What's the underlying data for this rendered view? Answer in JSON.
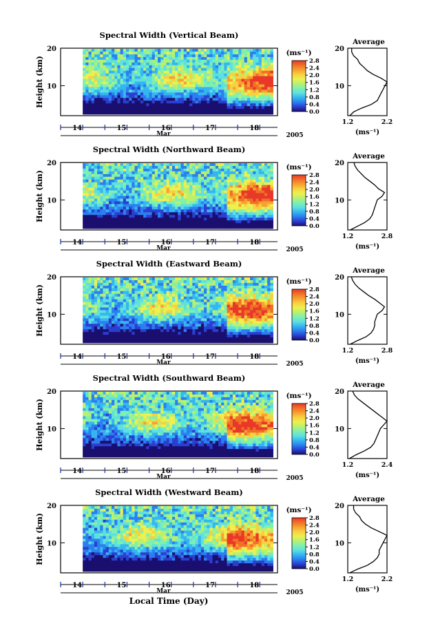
{
  "figure": {
    "xlabel": "Local Time (Day)",
    "month_label": "Mar",
    "year_label": "2005",
    "cbar_unit": "(ms⁻¹)",
    "avg_title": "Average",
    "avg_unit": "(ms⁻¹)"
  },
  "colormap": [
    "#1a0f6e",
    "#2a3fd0",
    "#2b7ff0",
    "#35b6f0",
    "#5fe0e0",
    "#7ff0b0",
    "#b8f070",
    "#ecf050",
    "#f8d040",
    "#f8a030",
    "#f07028",
    "#e83828"
  ],
  "chart_data": [
    {
      "type": "heatmap",
      "title": "Spectral Width (Vertical Beam)",
      "ylabel": "Height (km)",
      "yticks": [
        "10",
        "20"
      ],
      "ylim": [
        2,
        20
      ],
      "xticks": [
        "14",
        "15",
        "16",
        "17",
        "18"
      ],
      "xlim": [
        13.5,
        18.4
      ],
      "data_xlim": [
        14.0,
        18.3
      ],
      "colorbar": {
        "ticks": [
          "0.0",
          "0.4",
          "0.8",
          "1.2",
          "1.6",
          "2.0",
          "2.4",
          "2.8"
        ],
        "range": [
          0.0,
          2.8
        ]
      },
      "average": {
        "xticks": [
          "1.2",
          "2.2"
        ],
        "xlim": [
          1.2,
          2.2
        ],
        "heights": [
          2,
          3,
          4,
          5,
          6,
          7,
          8,
          9,
          10,
          11,
          12,
          13,
          14,
          15,
          16,
          17,
          18,
          19,
          20
        ],
        "values": [
          1.25,
          1.35,
          1.55,
          1.8,
          1.95,
          2.0,
          2.05,
          2.1,
          2.15,
          2.2,
          2.05,
          1.85,
          1.7,
          1.6,
          1.5,
          1.45,
          1.35,
          1.3,
          1.3
        ]
      }
    },
    {
      "type": "heatmap",
      "title": "Spectral Width (Northward Beam)",
      "ylabel": "Height (km)",
      "yticks": [
        "10",
        "20"
      ],
      "ylim": [
        2,
        20
      ],
      "xticks": [
        "14",
        "15",
        "16",
        "17",
        "18"
      ],
      "xlim": [
        13.5,
        18.4
      ],
      "data_xlim": [
        14.0,
        18.3
      ],
      "colorbar": {
        "ticks": [
          "0.0",
          "0.4",
          "0.8",
          "1.2",
          "1.6",
          "2.0",
          "2.4",
          "2.8"
        ],
        "range": [
          0.0,
          2.8
        ]
      },
      "average": {
        "xticks": [
          "1.2",
          "2.8"
        ],
        "xlim": [
          1.2,
          2.8
        ],
        "heights": [
          2,
          3,
          4,
          5,
          6,
          7,
          8,
          9,
          10,
          11,
          12,
          13,
          14,
          15,
          16,
          17,
          18,
          19,
          20
        ],
        "values": [
          1.3,
          1.6,
          1.9,
          2.1,
          2.2,
          2.25,
          2.3,
          2.35,
          2.4,
          2.6,
          2.7,
          2.45,
          2.3,
          2.1,
          1.9,
          1.75,
          1.6,
          1.5,
          1.45
        ]
      }
    },
    {
      "type": "heatmap",
      "title": "Spectral Width (Eastward Beam)",
      "ylabel": "Height (km)",
      "yticks": [
        "10",
        "20"
      ],
      "ylim": [
        2,
        20
      ],
      "xticks": [
        "14",
        "15",
        "16",
        "17",
        "18"
      ],
      "xlim": [
        13.5,
        18.4
      ],
      "data_xlim": [
        14.0,
        18.3
      ],
      "colorbar": {
        "ticks": [
          "0.0",
          "0.4",
          "0.8",
          "1.2",
          "1.6",
          "2.0",
          "2.4",
          "2.8"
        ],
        "range": [
          0.0,
          2.8
        ]
      },
      "average": {
        "xticks": [
          "1.2",
          "2.8"
        ],
        "xlim": [
          1.2,
          2.8
        ],
        "heights": [
          2,
          3,
          4,
          5,
          6,
          7,
          8,
          9,
          10,
          11,
          12,
          13,
          14,
          15,
          16,
          17,
          18,
          19,
          20
        ],
        "values": [
          1.3,
          1.6,
          1.95,
          2.15,
          2.25,
          2.3,
          2.3,
          2.35,
          2.4,
          2.6,
          2.7,
          2.5,
          2.3,
          2.05,
          1.85,
          1.65,
          1.5,
          1.4,
          1.35
        ]
      }
    },
    {
      "type": "heatmap",
      "title": "Spectral Width (Southward Beam)",
      "ylabel": "Height (km)",
      "yticks": [
        "10",
        "20"
      ],
      "ylim": [
        2,
        20
      ],
      "xticks": [
        "14",
        "15",
        "16",
        "17",
        "18"
      ],
      "xlim": [
        13.5,
        18.4
      ],
      "data_xlim": [
        14.0,
        18.3
      ],
      "colorbar": {
        "ticks": [
          "0.0",
          "0.4",
          "0.8",
          "1.2",
          "1.6",
          "2.0",
          "2.4",
          "2.8"
        ],
        "range": [
          0.0,
          2.8
        ]
      },
      "average": {
        "xticks": [
          "1.2",
          "2.4"
        ],
        "xlim": [
          1.2,
          2.4
        ],
        "heights": [
          2,
          3,
          4,
          5,
          6,
          7,
          8,
          9,
          10,
          11,
          12,
          13,
          14,
          15,
          16,
          17,
          18,
          19,
          20
        ],
        "values": [
          1.25,
          1.45,
          1.7,
          1.9,
          2.0,
          2.05,
          2.1,
          2.15,
          2.2,
          2.3,
          2.4,
          2.25,
          2.1,
          1.95,
          1.8,
          1.65,
          1.5,
          1.4,
          1.35
        ]
      }
    },
    {
      "type": "heatmap",
      "title": "Spectral Width (Westward Beam)",
      "ylabel": "Height (km)",
      "yticks": [
        "10",
        "20"
      ],
      "ylim": [
        2,
        20
      ],
      "xticks": [
        "14",
        "15",
        "16",
        "17",
        "18"
      ],
      "xlim": [
        13.5,
        18.4
      ],
      "data_xlim": [
        14.0,
        18.3
      ],
      "colorbar": {
        "ticks": [
          "0.0",
          "0.4",
          "0.8",
          "1.2",
          "1.6",
          "2.0",
          "2.4",
          "2.8"
        ],
        "range": [
          0.0,
          2.8
        ]
      },
      "average": {
        "xticks": [
          "1.2",
          "2.2"
        ],
        "xlim": [
          1.2,
          2.2
        ],
        "heights": [
          2,
          3,
          4,
          5,
          6,
          7,
          8,
          9,
          10,
          11,
          12,
          13,
          14,
          15,
          16,
          17,
          18,
          19,
          20
        ],
        "values": [
          1.25,
          1.45,
          1.7,
          1.85,
          1.95,
          2.0,
          2.0,
          2.05,
          2.1,
          2.15,
          2.2,
          2.0,
          1.8,
          1.65,
          1.55,
          1.5,
          1.4,
          1.35,
          1.35
        ]
      }
    }
  ]
}
